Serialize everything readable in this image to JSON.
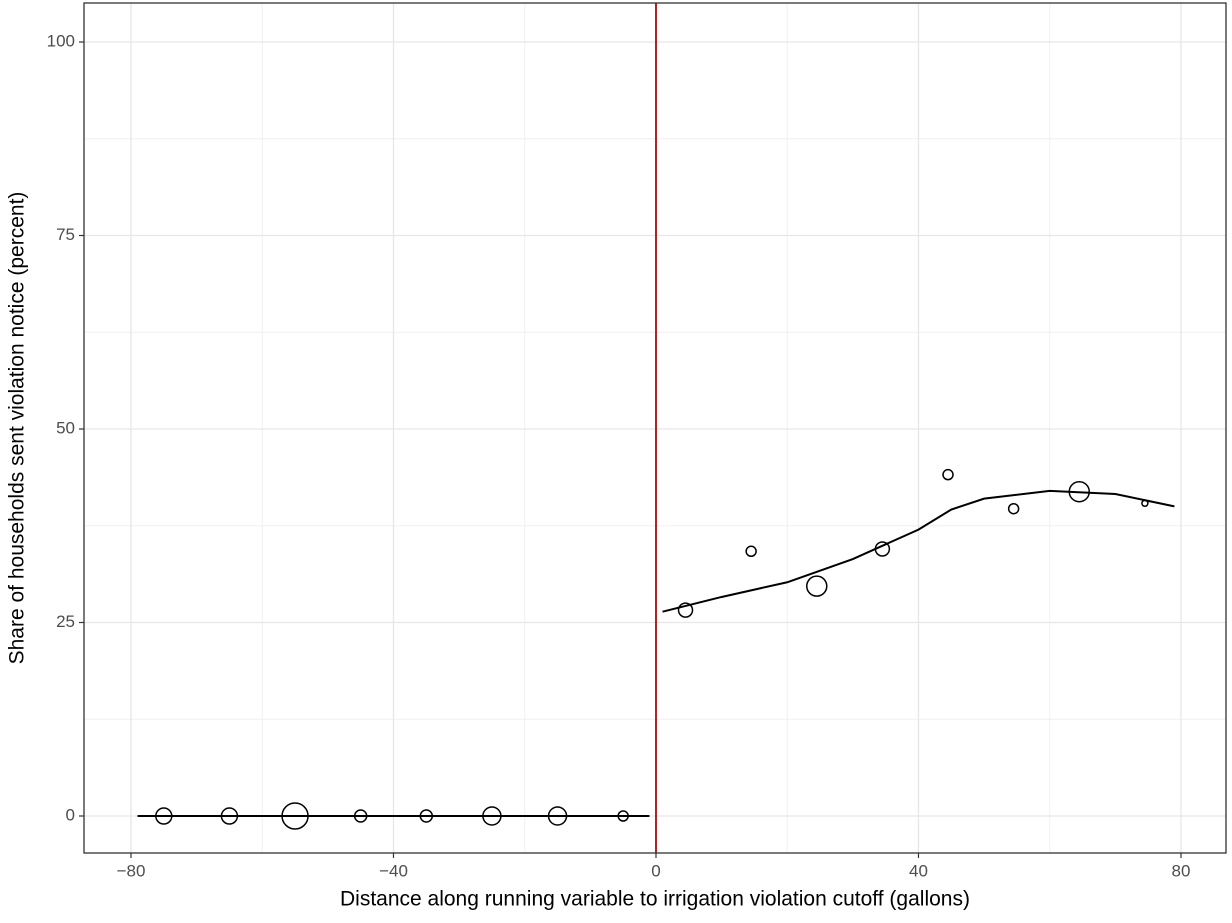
{
  "chart_data": {
    "type": "scatter",
    "x_label": "Distance along running variable to irrigation violation cutoff (gallons)",
    "y_label": "Share of households sent violation notice (percent)",
    "xlim": [
      -87.16,
      86.86
    ],
    "ylim": [
      -4.78,
      105.04
    ],
    "xticks": [
      {
        "value": -80,
        "label": "−80"
      },
      {
        "value": -40,
        "label": "−40"
      },
      0,
      40,
      80
    ],
    "yticks": [
      0,
      25,
      50,
      75,
      100
    ],
    "x_minor_ticks": [
      -60,
      -20,
      20,
      60
    ],
    "y_minor_ticks": [
      12.5,
      37.5,
      62.5,
      87.5
    ],
    "grid": true,
    "cutoff": {
      "x": 0,
      "color": "#b22222"
    },
    "points": {
      "x": [
        -75,
        -65,
        -55,
        -45,
        -35,
        -25,
        -15,
        -5,
        4.5,
        14.5,
        24.5,
        34.5,
        44.5,
        54.5,
        64.5,
        74.5
      ],
      "y": [
        0,
        0,
        0,
        0,
        0,
        0,
        0,
        0,
        26.6,
        34.2,
        29.7,
        34.5,
        44.1,
        39.7,
        41.9,
        40.4
      ],
      "sizes": [
        64,
        64,
        169,
        36,
        36,
        81,
        81,
        25,
        49,
        25,
        100,
        49,
        25,
        25,
        100,
        9
      ],
      "color": "#000000"
    },
    "fits": [
      {
        "x": [
          -79,
          -1
        ],
        "y": [
          0,
          0
        ],
        "color": "#000000"
      },
      {
        "x": [
          1,
          10,
          20,
          30,
          40,
          45,
          50,
          60,
          70,
          79
        ],
        "y": [
          26.4,
          28.3,
          30.2,
          33.2,
          37,
          39.6,
          41,
          42,
          41.6,
          40
        ],
        "color": "#000000"
      }
    ]
  }
}
